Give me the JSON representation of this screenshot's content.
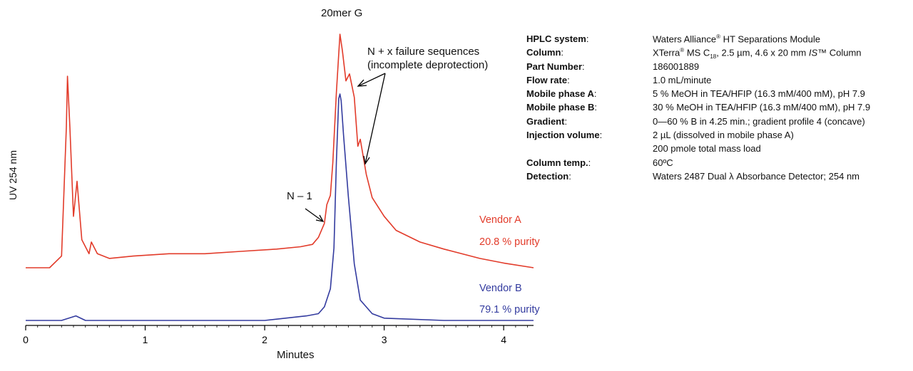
{
  "chart_data": {
    "type": "line",
    "title": "20mer G",
    "xlabel": "Minutes",
    "ylabel": "UV 254 nm",
    "xlim": [
      0,
      4.25
    ],
    "x_ticks": [
      0,
      1,
      2,
      3,
      4
    ],
    "x_tick_labels": [
      "0",
      "1",
      "2",
      "3",
      "4"
    ],
    "grid": false,
    "series": [
      {
        "name": "Vendor A",
        "purity": "20.8 % purity",
        "color": "#e23b2a",
        "points": [
          [
            0.0,
            0.0
          ],
          [
            0.2,
            0.0
          ],
          [
            0.3,
            0.05
          ],
          [
            0.34,
            0.6
          ],
          [
            0.35,
            0.82
          ],
          [
            0.37,
            0.6
          ],
          [
            0.4,
            0.22
          ],
          [
            0.43,
            0.37
          ],
          [
            0.47,
            0.12
          ],
          [
            0.53,
            0.06
          ],
          [
            0.55,
            0.11
          ],
          [
            0.6,
            0.06
          ],
          [
            0.7,
            0.04
          ],
          [
            0.9,
            0.05
          ],
          [
            1.2,
            0.06
          ],
          [
            1.5,
            0.06
          ],
          [
            1.8,
            0.07
          ],
          [
            2.1,
            0.08
          ],
          [
            2.3,
            0.09
          ],
          [
            2.4,
            0.1
          ],
          [
            2.45,
            0.13
          ],
          [
            2.5,
            0.19
          ],
          [
            2.52,
            0.27
          ],
          [
            2.55,
            0.31
          ],
          [
            2.57,
            0.45
          ],
          [
            2.6,
            0.75
          ],
          [
            2.63,
            1.0
          ],
          [
            2.65,
            0.93
          ],
          [
            2.68,
            0.8
          ],
          [
            2.71,
            0.83
          ],
          [
            2.75,
            0.73
          ],
          [
            2.78,
            0.52
          ],
          [
            2.8,
            0.55
          ],
          [
            2.85,
            0.4
          ],
          [
            2.9,
            0.3
          ],
          [
            3.0,
            0.22
          ],
          [
            3.1,
            0.16
          ],
          [
            3.3,
            0.11
          ],
          [
            3.5,
            0.08
          ],
          [
            3.8,
            0.04
          ],
          [
            4.0,
            0.02
          ],
          [
            4.25,
            0.0
          ]
        ]
      },
      {
        "name": "Vendor B",
        "purity": "79.1 % purity",
        "color": "#333b9f",
        "points": [
          [
            0.0,
            0.0
          ],
          [
            0.3,
            0.0
          ],
          [
            0.42,
            0.02
          ],
          [
            0.5,
            0.0
          ],
          [
            1.0,
            0.0
          ],
          [
            2.0,
            0.0
          ],
          [
            2.35,
            0.02
          ],
          [
            2.45,
            0.03
          ],
          [
            2.5,
            0.06
          ],
          [
            2.55,
            0.14
          ],
          [
            2.58,
            0.32
          ],
          [
            2.6,
            0.7
          ],
          [
            2.62,
            0.98
          ],
          [
            2.63,
            1.0
          ],
          [
            2.64,
            0.97
          ],
          [
            2.66,
            0.82
          ],
          [
            2.7,
            0.55
          ],
          [
            2.75,
            0.25
          ],
          [
            2.8,
            0.09
          ],
          [
            2.9,
            0.03
          ],
          [
            3.0,
            0.01
          ],
          [
            3.5,
            0.0
          ],
          [
            4.25,
            0.0
          ]
        ]
      }
    ],
    "annotations": [
      {
        "text": [
          "N + x failure sequences",
          "(incomplete deprotection)"
        ],
        "points_to_x": [
          2.73,
          2.8
        ]
      },
      {
        "text": [
          "N – 1"
        ],
        "points_to_x": [
          2.5
        ]
      }
    ]
  },
  "labels": {
    "peak": "20mer G",
    "ann_nx_line1": "N + x failure sequences",
    "ann_nx_line2": "(incomplete deprotection)",
    "ann_n1": "N – 1",
    "vendor_a": "Vendor A",
    "vendor_a_purity": "20.8 % purity",
    "vendor_b": "Vendor B",
    "vendor_b_purity": "79.1 % purity",
    "xlabel": "Minutes",
    "ylabel": "UV 254 nm"
  },
  "conditions": [
    {
      "key": "HPLC system",
      "sep": ":",
      "value_html": "Waters Alliance<sup>®</sup> HT Separations Module"
    },
    {
      "key": "Column",
      "sep": ":",
      "value_html": "XTerra<sup>®</sup> MS C<sub>18</sub>, 2.5 µm, 4.6 x 20 mm <i>IS</i>™ Column"
    },
    {
      "key": "Part Number",
      "sep": ":",
      "value_html": "186001889"
    },
    {
      "key": "Flow rate",
      "sep": ":",
      "value_html": "1.0 mL/minute"
    },
    {
      "key": "Mobile phase A",
      "sep": ":",
      "value_html": "5 % MeOH in TEA/HFIP (16.3 mM/400 mM), pH 7.9"
    },
    {
      "key": "Mobile phase B",
      "sep": ":",
      "value_html": "30 % MeOH in TEA/HFIP (16.3 mM/400 mM), pH 7.9"
    },
    {
      "key": "Gradient",
      "sep": ":",
      "value_html": "0—60 % B in 4.25 min.; gradient profile 4 (concave)"
    },
    {
      "key": "Injection volume",
      "sep": ":",
      "value_html": "2 µL (dissolved in mobile phase A)"
    },
    {
      "key": "",
      "sep": "",
      "value_html": "200 pmole total mass load"
    },
    {
      "key": "Column temp.",
      "sep": ":",
      "value_html": "60ºC"
    },
    {
      "key": "Detection",
      "sep": ":",
      "value_html": "Waters 2487 Dual λ Absorbance Detector; 254 nm"
    }
  ]
}
